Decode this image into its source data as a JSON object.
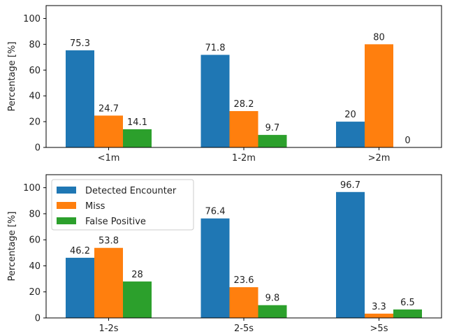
{
  "chart_data": [
    {
      "type": "bar",
      "categories": [
        "<1m",
        "1-2m",
        ">2m"
      ],
      "series": [
        {
          "name": "Detected Encounter",
          "values": [
            75.3,
            71.8,
            20
          ]
        },
        {
          "name": "Miss",
          "values": [
            24.7,
            28.2,
            80
          ]
        },
        {
          "name": "False Positive",
          "values": [
            14.1,
            9.7,
            0
          ]
        }
      ],
      "ylabel": "Percentage [%]",
      "ylim": [
        0,
        110
      ],
      "yticks": [
        0,
        20,
        40,
        60,
        80,
        100
      ],
      "legend": "none",
      "grid": false
    },
    {
      "type": "bar",
      "categories": [
        "1-2s",
        "2-5s",
        ">5s"
      ],
      "series": [
        {
          "name": "Detected Encounter",
          "values": [
            46.2,
            76.4,
            96.7
          ]
        },
        {
          "name": "Miss",
          "values": [
            53.8,
            23.6,
            3.3
          ]
        },
        {
          "name": "False Positive",
          "values": [
            28,
            9.8,
            6.5
          ]
        }
      ],
      "ylabel": "Percentage [%]",
      "ylim": [
        0,
        110
      ],
      "yticks": [
        0,
        20,
        40,
        60,
        80,
        100
      ],
      "legend": "top-left",
      "grid": false
    }
  ],
  "colors": {
    "Detected Encounter": "#1f77b4",
    "Miss": "#ff7f0e",
    "False Positive": "#2ca02c"
  }
}
